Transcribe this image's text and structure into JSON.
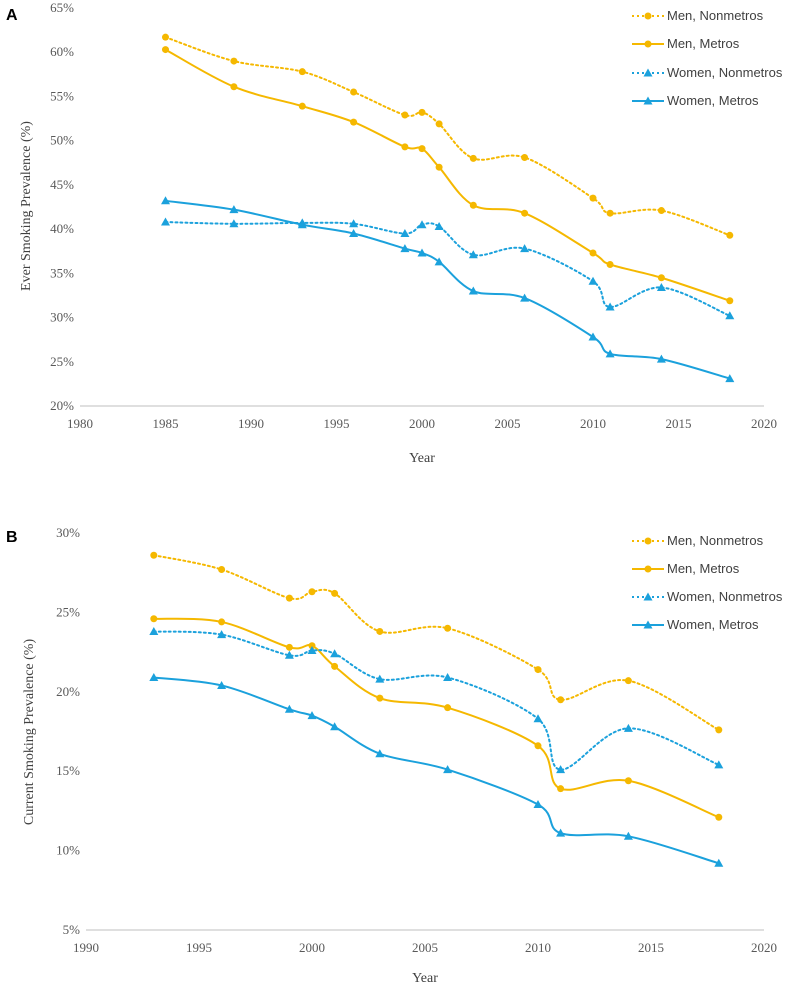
{
  "colors": {
    "men": "#F5B800",
    "women": "#1BA1DC",
    "axis": "#BFBFBF",
    "text": "#404040"
  },
  "chart_data": [
    {
      "type": "line",
      "panel_label": "A",
      "xlabel": "Year",
      "ylabel": "Ever Smoking Prevalence (%)",
      "xlim": [
        1980,
        2020
      ],
      "ylim": [
        20,
        65
      ],
      "x_ticks": [
        1980,
        1985,
        1990,
        1995,
        2000,
        2005,
        2010,
        2015,
        2020
      ],
      "y_ticks": [
        20,
        25,
        30,
        35,
        40,
        45,
        50,
        55,
        60,
        65
      ],
      "x_tick_labels": [
        "1980",
        "1985",
        "1990",
        "1995",
        "2000",
        "2005",
        "2010",
        "2015",
        "2020"
      ],
      "y_tick_labels": [
        "20%",
        "25%",
        "30%",
        "35%",
        "40%",
        "45%",
        "50%",
        "55%",
        "60%",
        "65%"
      ],
      "legend_position": "top-right",
      "series": [
        {
          "name": "Men, Nonmetros",
          "color": "#F5B800",
          "dash": "dotted",
          "marker": "circle",
          "x": [
            1985,
            1989,
            1993,
            1996,
            1999,
            2000,
            2001,
            2003,
            2006,
            2010,
            2011,
            2014,
            2018
          ],
          "values": [
            61.7,
            59.0,
            57.8,
            55.5,
            52.9,
            53.2,
            51.9,
            48.0,
            48.1,
            43.5,
            41.8,
            42.1,
            39.3
          ]
        },
        {
          "name": "Men, Metros",
          "color": "#F5B800",
          "dash": "solid",
          "marker": "circle",
          "x": [
            1985,
            1989,
            1993,
            1996,
            1999,
            2000,
            2001,
            2003,
            2006,
            2010,
            2011,
            2014,
            2018
          ],
          "values": [
            60.3,
            56.1,
            53.9,
            52.1,
            49.3,
            49.1,
            47.0,
            42.7,
            41.8,
            37.3,
            36.0,
            34.5,
            31.9
          ]
        },
        {
          "name": "Women, Nonmetros",
          "color": "#1BA1DC",
          "dash": "dotted",
          "marker": "triangle",
          "x": [
            1985,
            1989,
            1993,
            1996,
            1999,
            2000,
            2001,
            2003,
            2006,
            2010,
            2011,
            2014,
            2018
          ],
          "values": [
            40.8,
            40.6,
            40.7,
            40.6,
            39.5,
            40.5,
            40.3,
            37.1,
            37.8,
            34.1,
            31.2,
            33.4,
            30.2
          ]
        },
        {
          "name": "Women, Metros",
          "color": "#1BA1DC",
          "dash": "solid",
          "marker": "triangle",
          "x": [
            1985,
            1989,
            1993,
            1996,
            1999,
            2000,
            2001,
            2003,
            2006,
            2010,
            2011,
            2014,
            2018
          ],
          "values": [
            43.2,
            42.2,
            40.5,
            39.5,
            37.8,
            37.3,
            36.3,
            33.0,
            32.2,
            27.8,
            25.9,
            25.3,
            23.1
          ]
        }
      ]
    },
    {
      "type": "line",
      "panel_label": "B",
      "xlabel": "Year",
      "ylabel": "Current Smoking Prevalence (%)",
      "xlim": [
        1990,
        2020
      ],
      "ylim": [
        5,
        30
      ],
      "x_ticks": [
        1990,
        1995,
        2000,
        2005,
        2010,
        2015,
        2020
      ],
      "y_ticks": [
        5,
        10,
        15,
        20,
        25,
        30
      ],
      "x_tick_labels": [
        "1990",
        "1995",
        "2000",
        "2005",
        "2010",
        "2015",
        "2020"
      ],
      "y_tick_labels": [
        "5%",
        "10%",
        "15%",
        "20%",
        "25%",
        "30%"
      ],
      "legend_position": "top-right",
      "series": [
        {
          "name": "Men, Nonmetros",
          "color": "#F5B800",
          "dash": "dotted",
          "marker": "circle",
          "x": [
            1993,
            1996,
            1999,
            2000,
            2001,
            2003,
            2006,
            2010,
            2011,
            2014,
            2018
          ],
          "values": [
            28.6,
            27.7,
            25.9,
            26.3,
            26.2,
            23.8,
            24.0,
            21.4,
            19.5,
            20.7,
            17.6
          ]
        },
        {
          "name": "Men, Metros",
          "color": "#F5B800",
          "dash": "solid",
          "marker": "circle",
          "x": [
            1993,
            1996,
            1999,
            2000,
            2001,
            2003,
            2006,
            2010,
            2011,
            2014,
            2018
          ],
          "values": [
            24.6,
            24.4,
            22.8,
            22.9,
            21.6,
            19.6,
            19.0,
            16.6,
            13.9,
            14.4,
            12.1
          ]
        },
        {
          "name": "Women, Nonmetros",
          "color": "#1BA1DC",
          "dash": "dotted",
          "marker": "triangle",
          "x": [
            1993,
            1996,
            1999,
            2000,
            2001,
            2003,
            2006,
            2010,
            2011,
            2014,
            2018
          ],
          "values": [
            23.8,
            23.6,
            22.3,
            22.6,
            22.4,
            20.8,
            20.9,
            18.3,
            15.1,
            17.7,
            15.4
          ]
        },
        {
          "name": "Women, Metros",
          "color": "#1BA1DC",
          "dash": "solid",
          "marker": "triangle",
          "x": [
            1993,
            1996,
            1999,
            2000,
            2001,
            2003,
            2006,
            2010,
            2011,
            2014,
            2018
          ],
          "values": [
            20.9,
            20.4,
            18.9,
            18.5,
            17.8,
            16.1,
            15.1,
            12.9,
            11.1,
            10.9,
            9.2
          ]
        }
      ]
    }
  ]
}
